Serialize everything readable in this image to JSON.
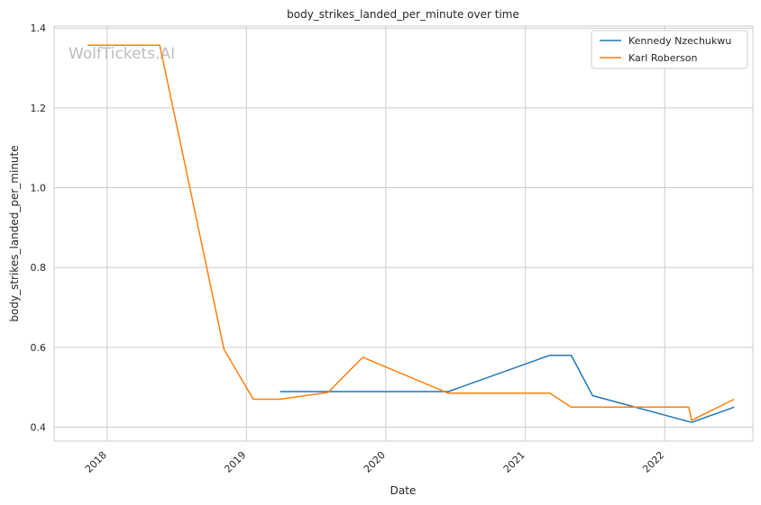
{
  "chart_data": {
    "type": "line",
    "title": "body_strikes_landed_per_minute over time",
    "xlabel": "Date",
    "ylabel": "body_strikes_landed_per_minute",
    "watermark": "WolfTickets.AI",
    "x_tick_labels": [
      "2018",
      "2019",
      "2020",
      "2021",
      "2022"
    ],
    "y_tick_labels": [
      "0.4",
      "0.6",
      "0.8",
      "1.0",
      "1.2",
      "1.4"
    ],
    "ylim": [
      0.365,
      1.405
    ],
    "xlim": [
      "2017-08-15",
      "2022-08-20"
    ],
    "grid": true,
    "legend_position": "top-right",
    "series": [
      {
        "name": "Kennedy Nzechukwu",
        "color": "#1f77b4",
        "points": [
          {
            "x": "2019-03-30",
            "y": 0.489
          },
          {
            "x": "2020-06-13",
            "y": 0.489
          },
          {
            "x": "2021-03-06",
            "y": 0.58
          },
          {
            "x": "2021-05-01",
            "y": 0.58
          },
          {
            "x": "2021-06-26",
            "y": 0.479
          },
          {
            "x": "2022-03-12",
            "y": 0.412
          },
          {
            "x": "2022-07-02",
            "y": 0.45
          }
        ]
      },
      {
        "name": "Karl Roberson",
        "color": "#ff7f0e",
        "points": [
          {
            "x": "2017-11-11",
            "y": 1.357
          },
          {
            "x": "2018-05-19",
            "y": 1.357
          },
          {
            "x": "2018-11-03",
            "y": 0.595
          },
          {
            "x": "2019-01-19",
            "y": 0.47
          },
          {
            "x": "2019-03-30",
            "y": 0.47
          },
          {
            "x": "2019-08-03",
            "y": 0.487
          },
          {
            "x": "2019-11-02",
            "y": 0.575
          },
          {
            "x": "2020-06-13",
            "y": 0.485
          },
          {
            "x": "2021-03-06",
            "y": 0.485
          },
          {
            "x": "2021-05-01",
            "y": 0.45
          },
          {
            "x": "2022-03-05",
            "y": 0.45
          },
          {
            "x": "2022-03-12",
            "y": 0.417
          },
          {
            "x": "2022-07-02",
            "y": 0.47
          }
        ]
      }
    ]
  }
}
